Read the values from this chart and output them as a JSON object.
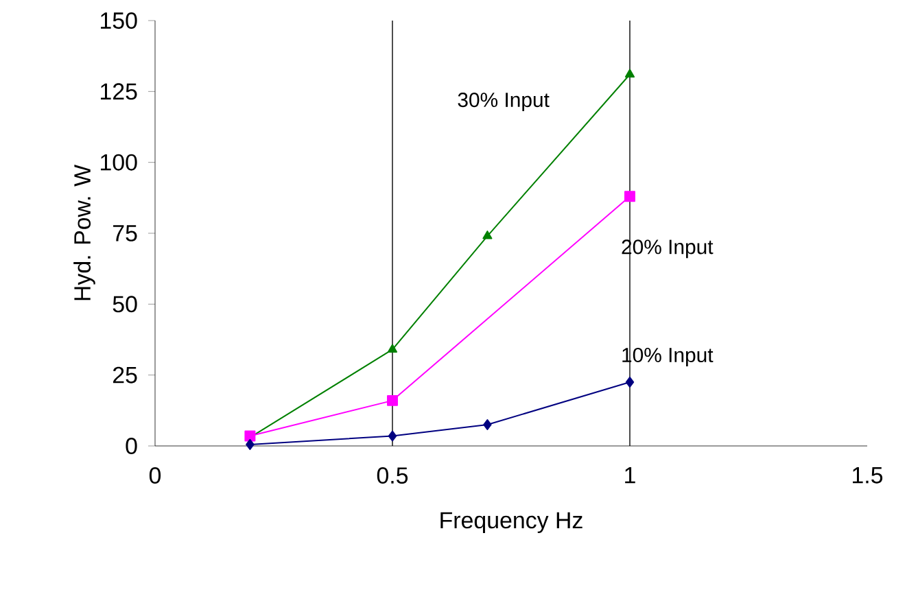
{
  "chart_data": {
    "type": "line",
    "xlabel": "Frequency Hz",
    "ylabel": "Hyd. Pow. W",
    "xlim": [
      0,
      1.5
    ],
    "ylim": [
      0,
      150
    ],
    "xticks": [
      0,
      0.5,
      1,
      1.5
    ],
    "yticks": [
      0,
      25,
      50,
      75,
      100,
      125,
      150
    ],
    "grid": "x",
    "series": [
      {
        "name": "30% Input",
        "color": "#008000",
        "marker": "triangle",
        "x": [
          0.2,
          0.5,
          0.7,
          1.0
        ],
        "values": [
          3,
          34,
          74,
          131
        ]
      },
      {
        "name": "20% Input",
        "color": "#ff00ff",
        "marker": "square",
        "x": [
          0.2,
          0.5,
          1.0
        ],
        "values": [
          3.5,
          16,
          88
        ]
      },
      {
        "name": "10% Input",
        "color": "#000080",
        "marker": "diamond",
        "x": [
          0.2,
          0.5,
          0.7,
          1.0
        ],
        "values": [
          0.5,
          3.5,
          7.5,
          22.5
        ]
      }
    ]
  }
}
